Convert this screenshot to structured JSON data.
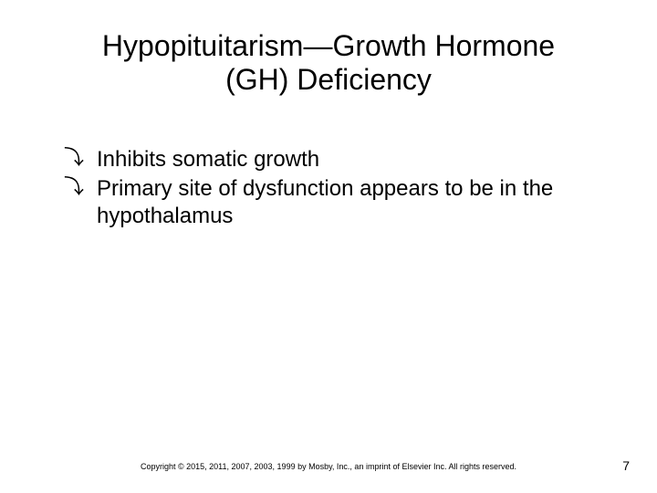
{
  "title": {
    "line1": "Hypopituitarism—Growth Hormone",
    "line2": "(GH) Deficiency",
    "fontsize": 32,
    "color": "#000000"
  },
  "bullets": [
    {
      "marker": "⤵",
      "text": "Inhibits somatic growth"
    },
    {
      "marker": "⤵",
      "text": "Primary site of dysfunction appears to be in the hypothalamus"
    }
  ],
  "bullet_style": {
    "fontsize": 24,
    "marker_fontsize": 22,
    "text_color": "#000000"
  },
  "footer": {
    "copyright": "Copyright © 2015, 2011, 2007, 2003, 1999 by Mosby, Inc., an imprint of Elsevier Inc. All rights reserved.",
    "page_number": "7",
    "copyright_fontsize": 9,
    "pagenum_fontsize": 14
  },
  "background_color": "#ffffff"
}
